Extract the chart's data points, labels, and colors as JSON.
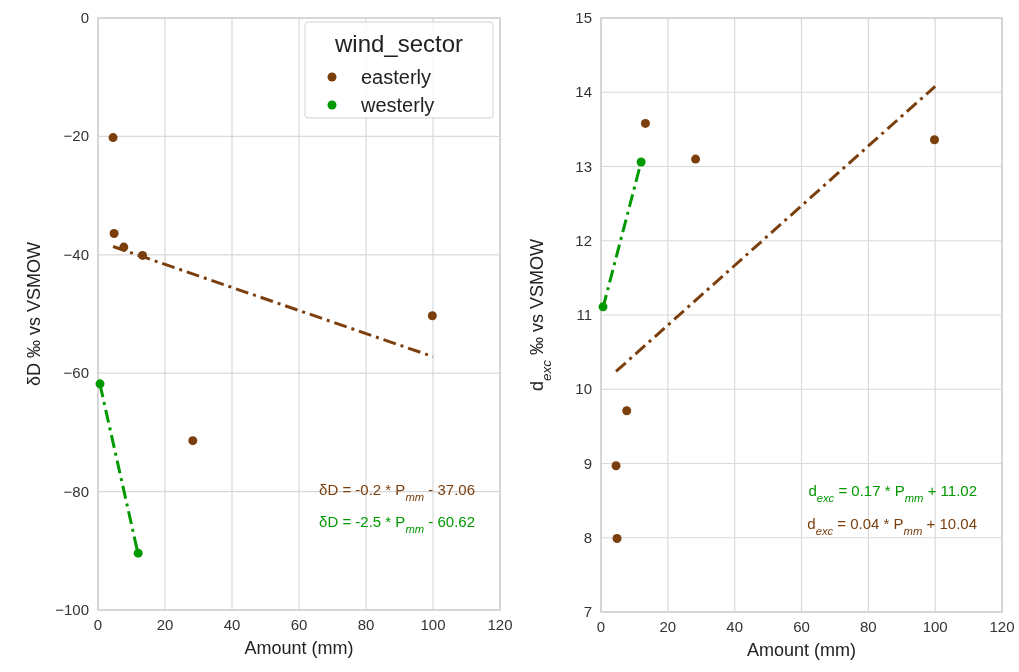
{
  "chart_data": [
    {
      "type": "scatter",
      "xlabel": "Amount (mm)",
      "ylabel": "δD ‰ vs VSMOW",
      "legend_title": "wind_sector",
      "legend": "top right",
      "grid": true,
      "marker": "circle",
      "xlim": [
        0,
        120
      ],
      "xticks": [
        0,
        20,
        40,
        60,
        80,
        100,
        120
      ],
      "ylim": [
        -100,
        0
      ],
      "yticks": [
        -100,
        -80,
        -60,
        -40,
        -20,
        0
      ],
      "series": [
        {
          "name": "easterly",
          "color": "#7b3f0e",
          "x": [
            4.5,
            4.8,
            7.7,
            13.3,
            28.3,
            99.8
          ],
          "values": [
            -20.2,
            -36.4,
            -38.7,
            -40.1,
            -71.4,
            -50.3
          ]
        },
        {
          "name": "westerly",
          "color": "#009900",
          "x": [
            0.6,
            12
          ],
          "values": [
            -61.8,
            -90.4
          ]
        },
        {
          "type": "line",
          "line_style": "dashdot",
          "marker": "none",
          "color": "#7b3f0e",
          "x": [
            4.5,
            100
          ],
          "values": [
            -38.6,
            -57.2
          ]
        },
        {
          "type": "line",
          "line_style": "dashdot",
          "marker": "none",
          "color": "#009900",
          "x": [
            0.6,
            12
          ],
          "values": [
            -61.9,
            -90.6
          ]
        }
      ],
      "annotations": [
        "δD = -0.2 * P$_{mm}$ - 37.06",
        "δD = -2.5 * P$_{mm}$ - 60.62"
      ]
    },
    {
      "type": "scatter",
      "xlabel": "Amount (mm)",
      "ylabel": "d$_{exc}$ ‰ vs VSMOW",
      "grid": true,
      "marker": "circle",
      "xlim": [
        0,
        120
      ],
      "xticks": [
        0,
        20,
        40,
        60,
        80,
        100,
        120
      ],
      "ylim": [
        7,
        15
      ],
      "yticks": [
        7,
        8,
        9,
        10,
        11,
        12,
        13,
        14,
        15
      ],
      "series": [
        {
          "color": "#7b3f0e",
          "x": [
            4.5,
            4.8,
            7.7,
            13.3,
            28.3,
            99.8
          ],
          "values": [
            8.97,
            7.99,
            9.71,
            13.58,
            13.1,
            13.36
          ]
        },
        {
          "color": "#009900",
          "x": [
            0.6,
            12
          ],
          "values": [
            11.11,
            13.06
          ]
        },
        {
          "type": "line",
          "line_style": "dashdot",
          "marker": "none",
          "color": "#009900",
          "x": [
            0.6,
            12
          ],
          "values": [
            11.1,
            13.06
          ]
        },
        {
          "type": "line",
          "line_style": "dashdot",
          "marker": "none",
          "color": "#7b3f0e",
          "x": [
            4.5,
            100
          ],
          "values": [
            10.24,
            14.08
          ]
        }
      ],
      "annotations": [
        "d$_{exc}$ = 0.17 * P$_{mm}$ + 11.02",
        "d$_{exc}$ = 0.04 * P$_{mm}$ + 10.04"
      ]
    }
  ]
}
